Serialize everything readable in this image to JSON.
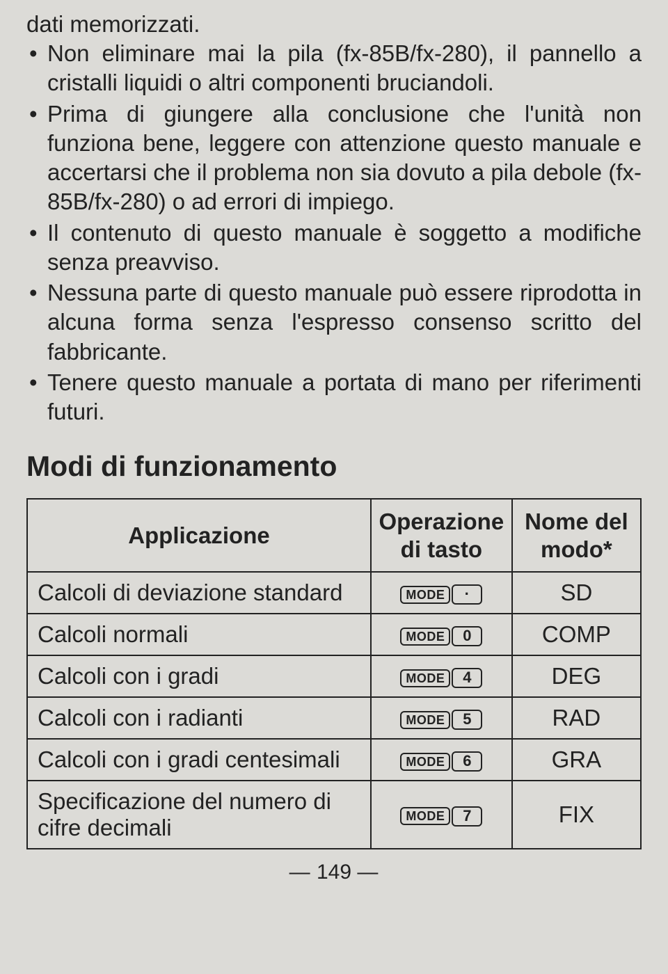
{
  "fragment_top": "dati memorizzati.",
  "bullets": [
    "Non eliminare mai la pila (fx-85B/fx-280), il pannello a cristalli liquidi o altri componenti bruciandoli.",
    "Prima di giungere alla conclusione che l'unità non funziona bene, leggere con attenzione questo manuale e accertarsi che il problema non sia dovuto a pila debole (fx-85B/fx-280) o ad errori di impiego.",
    "Il contenuto di questo manuale è soggetto a modifiche senza preavviso.",
    "Nessuna parte di questo manuale può essere riprodotta in alcuna forma senza l'espresso consenso scritto del fabbricante.",
    "Tenere questo manuale a portata di mano per riferimenti futuri."
  ],
  "section_heading": "Modi di funzionamento",
  "table": {
    "headers": {
      "application": "Applicazione",
      "operation": "Operazione di tasto",
      "mode_name": "Nome del modo*"
    },
    "key_mode_label": "MODE",
    "rows": [
      {
        "application": "Calcoli di deviazione standard",
        "key2": "·",
        "mode": "SD"
      },
      {
        "application": "Calcoli normali",
        "key2": "0",
        "mode": "COMP"
      },
      {
        "application": "Calcoli con i gradi",
        "key2": "4",
        "mode": "DEG"
      },
      {
        "application": "Calcoli con i radianti",
        "key2": "5",
        "mode": "RAD"
      },
      {
        "application": "Calcoli con i gradi centesimali",
        "key2": "6",
        "mode": "GRA"
      },
      {
        "application": "Specificazione del numero di cifre decimali",
        "key2": "7",
        "mode": "FIX"
      }
    ]
  },
  "page_number": "149"
}
